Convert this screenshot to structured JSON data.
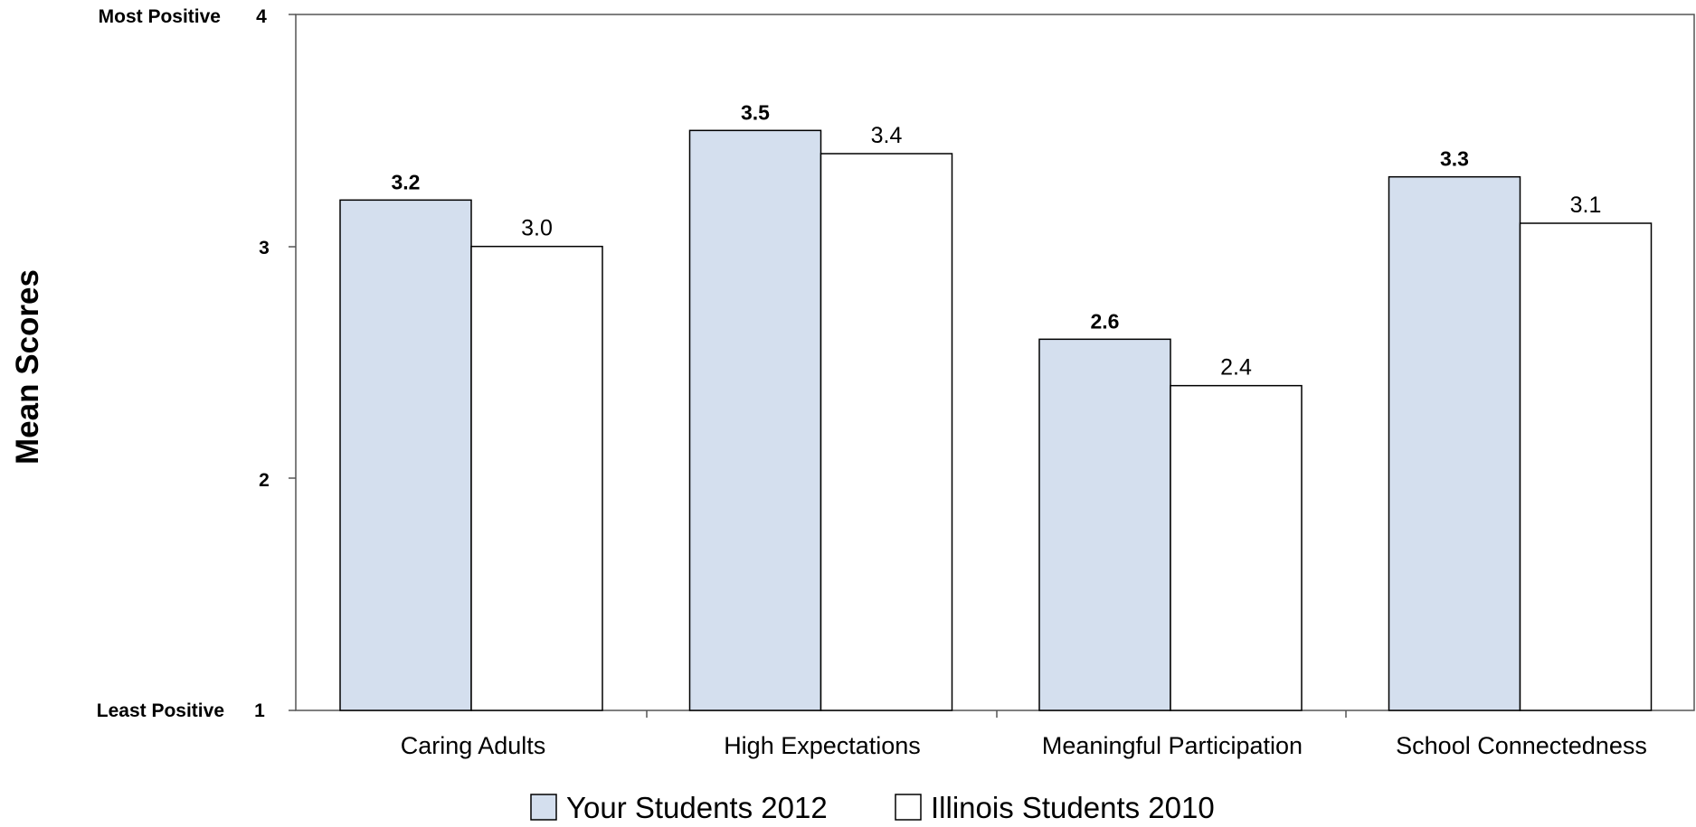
{
  "chart_data": {
    "type": "bar",
    "categories": [
      "Caring Adults",
      "High Expectations",
      "Meaningful Participation",
      "School Connectedness"
    ],
    "series": [
      {
        "name": "Your Students 2012",
        "values": [
          3.2,
          3.5,
          2.6,
          3.3
        ],
        "labels": [
          "3.2",
          "3.5",
          "2.6",
          "3.3"
        ],
        "color": "#d4dfee"
      },
      {
        "name": "Illinois Students 2010",
        "values": [
          3.0,
          3.4,
          2.4,
          3.1
        ],
        "labels": [
          "3.0",
          "3.4",
          "2.4",
          "3.1"
        ],
        "color": "#ffffff"
      }
    ],
    "ylabel": "Mean Scores",
    "ylim": [
      1,
      4
    ],
    "yticks": [
      "1",
      "2",
      "3",
      "4"
    ],
    "y_anchor_labels": {
      "top": "Most Positive",
      "bottom": "Least Positive"
    },
    "grid": false,
    "legend_position": "bottom-center"
  }
}
